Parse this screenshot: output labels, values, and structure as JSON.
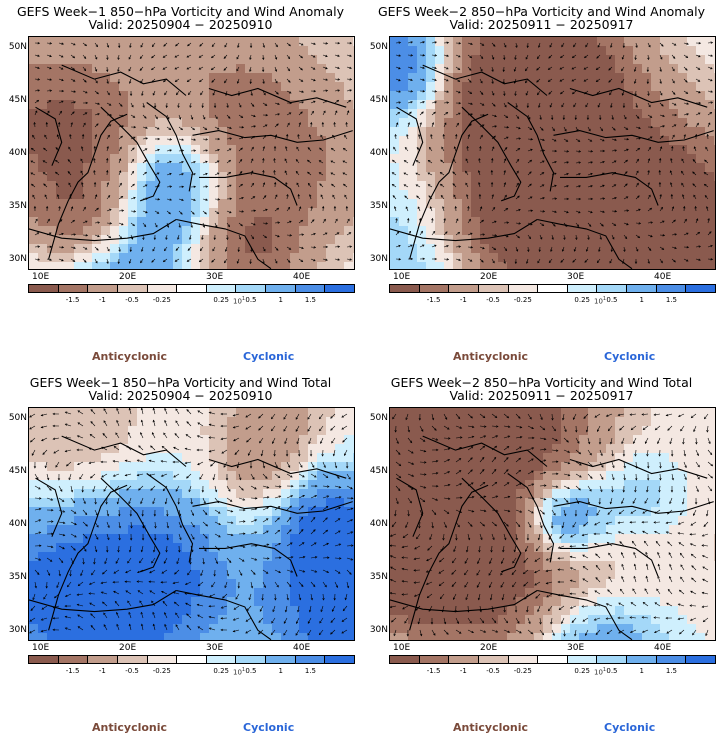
{
  "panels": [
    {
      "title1": "GEFS Week−1 850−hPa Vorticity and Wind Anomaly",
      "title2": "Valid: 20250904 − 20250910",
      "variant": "anomaly",
      "seed": 11
    },
    {
      "title1": "GEFS Week−2 850−hPa Vorticity and Wind Anomaly",
      "title2": "Valid: 20250911 − 20250917",
      "variant": "anomaly",
      "seed": 23
    },
    {
      "title1": "GEFS Week−1 850−hPa Vorticity and Wind Total",
      "title2": "Valid: 20250904 − 20250910",
      "variant": "total",
      "seed": 37
    },
    {
      "title1": "GEFS Week−2 850−hPa Vorticity and Wind Total",
      "title2": "Valid: 20250911 − 20250917",
      "variant": "total",
      "seed": 53
    }
  ],
  "lat_labels": [
    "50N",
    "45N",
    "40N",
    "35N",
    "30N"
  ],
  "lon_labels": [
    "10E",
    "20E",
    "30E",
    "40E"
  ],
  "colorbar": {
    "colors": [
      "#8a5a4e",
      "#a47565",
      "#c29d8c",
      "#dcc3b6",
      "#f4e8e2",
      "#ffffff",
      "#cfeffd",
      "#a4d8f8",
      "#6fb0ee",
      "#4c8ee6",
      "#2b6fe0"
    ],
    "labels": [
      "-1.5",
      "-1",
      "-0.5",
      "-0.25",
      "0.25",
      "0.5",
      "1",
      "1.5"
    ],
    "unit": "10",
    "unit_exp": "1"
  },
  "legend": {
    "anticyclonic": "Anticyclonic",
    "cyclonic": "Cyclonic"
  }
}
